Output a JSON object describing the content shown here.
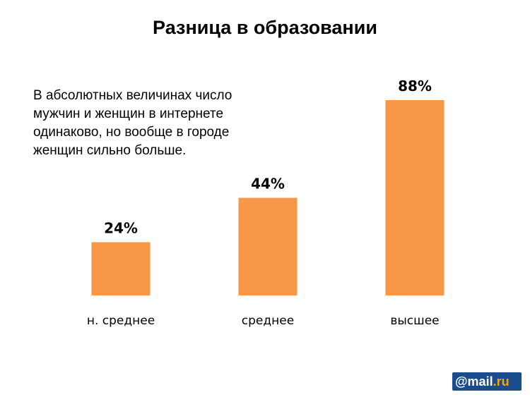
{
  "title": "Разница в образовании",
  "note": "В абсолютных величинах число\nмужчин и женщин в интернете\nодинаково, но вообще в городе\nженщин сильно больше.",
  "logo": {
    "prefix": "@mail",
    "suffix": ".ru"
  },
  "colors": {
    "bar": "#f79747",
    "text": "#000000",
    "logo_bg": "#1a4b8c",
    "logo_accent": "#f7a600"
  },
  "chart_data": {
    "type": "bar",
    "categories": [
      "н. среднее",
      "среднее",
      "высшее"
    ],
    "values": [
      24,
      44,
      88
    ],
    "value_labels": [
      "24%",
      "44%",
      "88%"
    ],
    "ylim": [
      0,
      100
    ],
    "grid": false,
    "legend": "none"
  }
}
